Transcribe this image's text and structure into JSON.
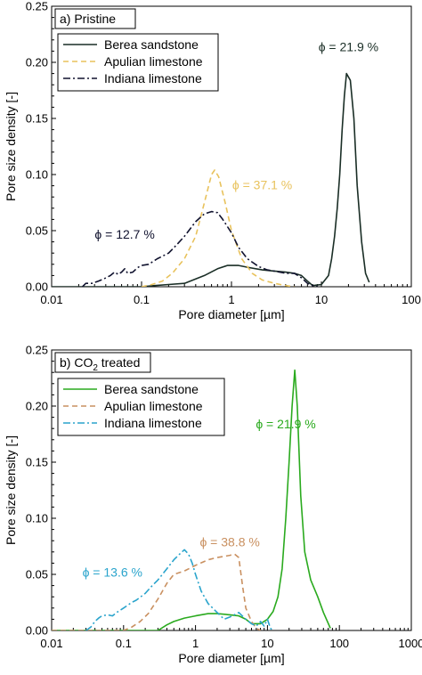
{
  "chart_data": [
    {
      "type": "line",
      "panel_label": "a) Pristine",
      "xlabel": "Pore diameter [µm]",
      "ylabel": "Pore size density [-]",
      "xscale": "log",
      "xlim": [
        0.01,
        100
      ],
      "ylim": [
        0,
        0.25
      ],
      "xticks": [
        0.01,
        0.1,
        1,
        10,
        100
      ],
      "xtick_labels": [
        "0.01",
        "0.1",
        "1",
        "10",
        "100"
      ],
      "yticks": [
        0,
        0.05,
        0.1,
        0.15,
        0.2,
        0.25
      ],
      "ytick_labels": [
        "0.00",
        "0.05",
        "0.10",
        "0.15",
        "0.20",
        "0.25"
      ],
      "legend": "top-left",
      "grid": false,
      "series": [
        {
          "name": "Berea sandstone",
          "color": "#1a2e26",
          "dash": "solid",
          "points": [
            [
              0.01,
              0
            ],
            [
              0.1,
              0
            ],
            [
              0.14,
              0.001
            ],
            [
              0.2,
              0.002
            ],
            [
              0.3,
              0.003
            ],
            [
              0.4,
              0.007
            ],
            [
              0.5,
              0.01
            ],
            [
              0.7,
              0.016
            ],
            [
              0.9,
              0.019
            ],
            [
              1.2,
              0.019
            ],
            [
              1.6,
              0.017
            ],
            [
              2.2,
              0.015
            ],
            [
              3,
              0.014
            ],
            [
              4,
              0.013
            ],
            [
              5,
              0.012
            ],
            [
              6,
              0.01
            ],
            [
              7,
              0.005
            ],
            [
              8,
              0.001
            ],
            [
              10,
              0.002
            ],
            [
              12,
              0.01
            ],
            [
              13,
              0.025
            ],
            [
              14,
              0.045
            ],
            [
              15,
              0.07
            ],
            [
              16,
              0.1
            ],
            [
              17,
              0.14
            ],
            [
              18,
              0.17
            ],
            [
              19,
              0.19
            ],
            [
              21,
              0.184
            ],
            [
              23,
              0.15
            ],
            [
              25,
              0.09
            ],
            [
              28,
              0.04
            ],
            [
              31,
              0.012
            ],
            [
              34,
              0.004
            ]
          ]
        },
        {
          "name": "Apulian limestone",
          "color": "#e8c25c",
          "dash": "dashed",
          "points": [
            [
              0.1,
              0
            ],
            [
              0.13,
              0.002
            ],
            [
              0.17,
              0.005
            ],
            [
              0.22,
              0.012
            ],
            [
              0.3,
              0.025
            ],
            [
              0.4,
              0.045
            ],
            [
              0.5,
              0.075
            ],
            [
              0.6,
              0.1
            ],
            [
              0.65,
              0.104
            ],
            [
              0.72,
              0.098
            ],
            [
              0.85,
              0.075
            ],
            [
              1,
              0.05
            ],
            [
              1.3,
              0.025
            ],
            [
              1.7,
              0.012
            ],
            [
              2.2,
              0.006
            ],
            [
              3,
              0.003
            ],
            [
              4,
              0.001
            ],
            [
              5,
              0
            ]
          ]
        },
        {
          "name": "Indiana limestone",
          "color": "#10122e",
          "dash": "dashdot",
          "points": [
            [
              0.022,
              0
            ],
            [
              0.024,
              0.003
            ],
            [
              0.028,
              0.003
            ],
            [
              0.033,
              0.005
            ],
            [
              0.038,
              0.007
            ],
            [
              0.045,
              0.01
            ],
            [
              0.05,
              0.013
            ],
            [
              0.055,
              0.011
            ],
            [
              0.06,
              0.013
            ],
            [
              0.065,
              0.016
            ],
            [
              0.07,
              0.012
            ],
            [
              0.08,
              0.013
            ],
            [
              0.09,
              0.017
            ],
            [
              0.1,
              0.019
            ],
            [
              0.12,
              0.02
            ],
            [
              0.15,
              0.025
            ],
            [
              0.2,
              0.03
            ],
            [
              0.25,
              0.038
            ],
            [
              0.3,
              0.045
            ],
            [
              0.4,
              0.058
            ],
            [
              0.5,
              0.065
            ],
            [
              0.6,
              0.067
            ],
            [
              0.7,
              0.066
            ],
            [
              0.8,
              0.06
            ],
            [
              1,
              0.048
            ],
            [
              1.2,
              0.035
            ],
            [
              1.5,
              0.025
            ],
            [
              2,
              0.018
            ],
            [
              2.5,
              0.015
            ],
            [
              3,
              0.014
            ],
            [
              4,
              0.012
            ],
            [
              5,
              0.012
            ],
            [
              6,
              0.008
            ],
            [
              7,
              0.003
            ],
            [
              8,
              0.001
            ],
            [
              9,
              0
            ]
          ]
        }
      ],
      "annotations": [
        {
          "text": "ϕ = 21.9 %",
          "color": "#1a2e26",
          "x": 20,
          "y": 0.21
        },
        {
          "text": "ϕ = 37.1 %",
          "color": "#e8c25c",
          "x": 2.2,
          "y": 0.087
        },
        {
          "text": "ϕ = 12.7 %",
          "color": "#10122e",
          "x": 0.065,
          "y": 0.043
        }
      ]
    },
    {
      "type": "line",
      "panel_label_prefix": "b) CO",
      "panel_label_sub": "2",
      "panel_label_suffix": " treated",
      "xlabel": "Pore diameter [µm]",
      "ylabel": "Pore size density [-]",
      "xscale": "log",
      "xlim": [
        0.01,
        1000
      ],
      "ylim": [
        0,
        0.25
      ],
      "xticks": [
        0.01,
        0.1,
        1,
        10,
        100,
        1000
      ],
      "xtick_labels": [
        "0.01",
        "0.1",
        "1",
        "10",
        "100",
        "1000"
      ],
      "yticks": [
        0,
        0.05,
        0.1,
        0.15,
        0.2,
        0.25
      ],
      "ytick_labels": [
        "0.00",
        "0.05",
        "0.10",
        "0.15",
        "0.20",
        "0.25"
      ],
      "legend": "top-left",
      "grid": false,
      "series": [
        {
          "name": "Berea sandstone",
          "color": "#2aaa1e",
          "dash": "solid",
          "points": [
            [
              0.01,
              0
            ],
            [
              0.3,
              0
            ],
            [
              0.4,
              0.005
            ],
            [
              0.5,
              0.008
            ],
            [
              0.7,
              0.011
            ],
            [
              1,
              0.013
            ],
            [
              1.5,
              0.015
            ],
            [
              2,
              0.015
            ],
            [
              3,
              0.014
            ],
            [
              4,
              0.013
            ],
            [
              5,
              0.01
            ],
            [
              6,
              0.006
            ],
            [
              8,
              0.006
            ],
            [
              10,
              0.01
            ],
            [
              12,
              0.017
            ],
            [
              14,
              0.03
            ],
            [
              16,
              0.055
            ],
            [
              18,
              0.1
            ],
            [
              20,
              0.15
            ],
            [
              22,
              0.2
            ],
            [
              24,
              0.232
            ],
            [
              26,
              0.2
            ],
            [
              29,
              0.12
            ],
            [
              33,
              0.07
            ],
            [
              40,
              0.045
            ],
            [
              50,
              0.03
            ],
            [
              60,
              0.016
            ],
            [
              75,
              0.002
            ]
          ]
        },
        {
          "name": "Apulian limestone",
          "color": "#c99060",
          "dash": "dashed",
          "points": [
            [
              0.01,
              0
            ],
            [
              0.1,
              0
            ],
            [
              0.13,
              0.003
            ],
            [
              0.17,
              0.008
            ],
            [
              0.22,
              0.015
            ],
            [
              0.3,
              0.028
            ],
            [
              0.4,
              0.042
            ],
            [
              0.5,
              0.05
            ],
            [
              0.7,
              0.053
            ],
            [
              1,
              0.058
            ],
            [
              1.5,
              0.063
            ],
            [
              2,
              0.065
            ],
            [
              2.5,
              0.066
            ],
            [
              3,
              0.067
            ],
            [
              3.5,
              0.068
            ],
            [
              4,
              0.065
            ],
            [
              4.5,
              0.04
            ],
            [
              5,
              0.02
            ],
            [
              6,
              0.008
            ],
            [
              7,
              0.002
            ],
            [
              8,
              0
            ]
          ]
        },
        {
          "name": "Indiana limestone",
          "color": "#2aa4cc",
          "dash": "dashdot",
          "points": [
            [
              0.03,
              0
            ],
            [
              0.035,
              0.003
            ],
            [
              0.04,
              0.008
            ],
            [
              0.045,
              0.011
            ],
            [
              0.05,
              0.013
            ],
            [
              0.06,
              0.014
            ],
            [
              0.07,
              0.013
            ],
            [
              0.08,
              0.016
            ],
            [
              0.1,
              0.02
            ],
            [
              0.13,
              0.025
            ],
            [
              0.15,
              0.027
            ],
            [
              0.2,
              0.033
            ],
            [
              0.25,
              0.04
            ],
            [
              0.3,
              0.045
            ],
            [
              0.4,
              0.055
            ],
            [
              0.5,
              0.063
            ],
            [
              0.6,
              0.068
            ],
            [
              0.7,
              0.072
            ],
            [
              0.8,
              0.068
            ],
            [
              0.9,
              0.06
            ],
            [
              1,
              0.05
            ],
            [
              1.2,
              0.035
            ],
            [
              1.5,
              0.024
            ],
            [
              2,
              0.016
            ],
            [
              2.5,
              0.01
            ],
            [
              3,
              0.012
            ],
            [
              4,
              0.016
            ],
            [
              5,
              0.01
            ],
            [
              6,
              0.006
            ],
            [
              7,
              0.004
            ],
            [
              8,
              0.008
            ],
            [
              9,
              0.004
            ],
            [
              10,
              0.01
            ],
            [
              11,
              0.002
            ],
            [
              12,
              0
            ]
          ]
        }
      ],
      "annotations": [
        {
          "text": "ϕ = 21.9 %",
          "color": "#2aaa1e",
          "x": 18,
          "y": 0.18
        },
        {
          "text": "ϕ = 38.8 %",
          "color": "#c99060",
          "x": 3,
          "y": 0.075
        },
        {
          "text": "ϕ = 13.6 %",
          "color": "#2aa4cc",
          "x": 0.07,
          "y": 0.048
        }
      ]
    }
  ]
}
